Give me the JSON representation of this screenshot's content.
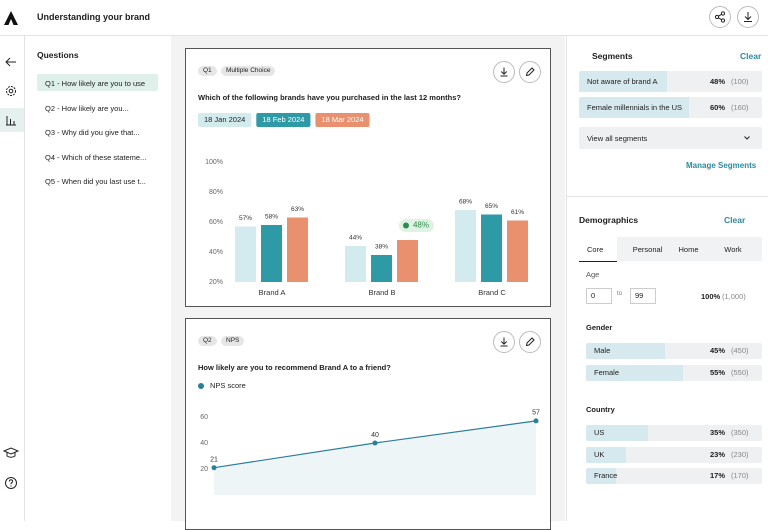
{
  "header": {
    "title": "Understanding your brand"
  },
  "sidebar": {
    "questions_title": "Questions",
    "questions": [
      "Q1 - How likely are you to use",
      "Q2 - How likely are you...",
      "Q3 - Why did you give that...",
      "Q4 - Which of these stateme...",
      "Q5 - When did you last use t..."
    ]
  },
  "cards": [
    {
      "tags": [
        "Q1",
        "Multiple Choice"
      ],
      "question": "Which of the following brands have you purchased in the last 12 months?",
      "chart": {
        "type": "bar",
        "categories": [
          "Brand A",
          "Brand B",
          "Brand C"
        ],
        "series": [
          {
            "name": "18 Jan 2024",
            "color": "#d3ebef",
            "values": [
              57,
              44,
              68
            ],
            "value_labels": [
              "57%",
              "44%",
              "68%"
            ]
          },
          {
            "name": "18 Feb 2024",
            "color": "#2e9aa6",
            "values": [
              58,
              38,
              65
            ],
            "value_labels": [
              "58%",
              "38%",
              "65%"
            ]
          },
          {
            "name": "18 Mar 2024",
            "color": "#e9906e",
            "values": [
              63,
              48,
              61
            ],
            "value_labels": [
              "63%",
              "48%",
              "61%"
            ]
          }
        ],
        "ylim": [
          20,
          100
        ],
        "yticks": [
          {
            "value": 100,
            "label": "100%"
          },
          {
            "value": 80,
            "label": "80%"
          },
          {
            "value": 60,
            "label": "60%"
          },
          {
            "value": 40,
            "label": "40%"
          },
          {
            "value": 20,
            "label": "20%"
          }
        ],
        "highlight": {
          "series": 2,
          "category": 1
        }
      }
    },
    {
      "tags": [
        "Q2",
        "NPS"
      ],
      "question": "How likely are you to recommend Brand A to a friend?",
      "chart": {
        "type": "line",
        "series": [
          {
            "name": "NPS score",
            "color": "#2a7f9c",
            "values": [
              21,
              40,
              57
            ]
          }
        ],
        "ylim": [
          0,
          70
        ],
        "yticks": [
          60,
          40,
          20
        ]
      }
    }
  ],
  "segments": {
    "title": "Segments",
    "clear": "Clear",
    "rows": [
      {
        "label": "Not aware of brand A",
        "value": 48,
        "value_label": "48%",
        "count": "(100)"
      },
      {
        "label": "Female millennials in the US",
        "value": 60,
        "value_label": "60%",
        "count": "(160)"
      }
    ],
    "dropdown": "View all segments",
    "manage": "Manage Segments"
  },
  "demographics": {
    "title": "Demographics",
    "clear": "Clear",
    "tabs": [
      "Core",
      "Personal",
      "Home",
      "Work"
    ],
    "age": {
      "label": "Age",
      "min": 0,
      "to": "to",
      "max": 99,
      "value_label": "100%",
      "count": "(1,000)"
    },
    "groups": [
      {
        "title": "Gender",
        "rows": [
          {
            "label": "Male",
            "value": 45,
            "value_label": "45%",
            "count": "(450)"
          },
          {
            "label": "Female",
            "value": 55,
            "value_label": "55%",
            "count": "(550)"
          }
        ]
      },
      {
        "title": "Country",
        "rows": [
          {
            "label": "US",
            "value": 35,
            "value_label": "35%",
            "count": "(350)"
          },
          {
            "label": "UK",
            "value": 23,
            "value_label": "23%",
            "count": "(230)"
          },
          {
            "label": "France",
            "value": 17,
            "value_label": "17%",
            "count": "(170)"
          }
        ]
      }
    ]
  }
}
